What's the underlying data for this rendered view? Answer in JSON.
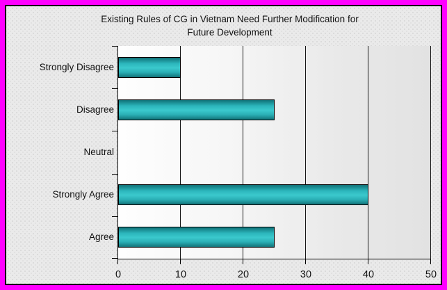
{
  "window": {
    "frame_color": "#ff00ff",
    "panel_border_color": "#000000",
    "panel_background": "#eaeaea"
  },
  "chart_data": {
    "type": "bar",
    "orientation": "horizontal",
    "title": "Existing Rules of CG in Vietnam Need Further Modification for Future Development",
    "title_lines": [
      "Existing Rules of CG in Vietnam Need Further Modification for",
      "Future Development"
    ],
    "categories": [
      "Strongly Disagree",
      "Disagree",
      "Neutral",
      "Strongly Agree",
      "Agree"
    ],
    "values": [
      10,
      25,
      0,
      40,
      25
    ],
    "xlabel": "",
    "ylabel": "",
    "xlim": [
      0,
      50
    ],
    "xticks": [
      0,
      10,
      20,
      30,
      40,
      50
    ],
    "grid": "vertical gridlines at each x tick",
    "legend": "none",
    "bar_fill_light": "#3bc9cd",
    "bar_fill_dark": "#0f7177",
    "bar_border_color": "#000000",
    "plot_bg_left": "#fefefe",
    "plot_bg_right": "#e2e2e2"
  }
}
